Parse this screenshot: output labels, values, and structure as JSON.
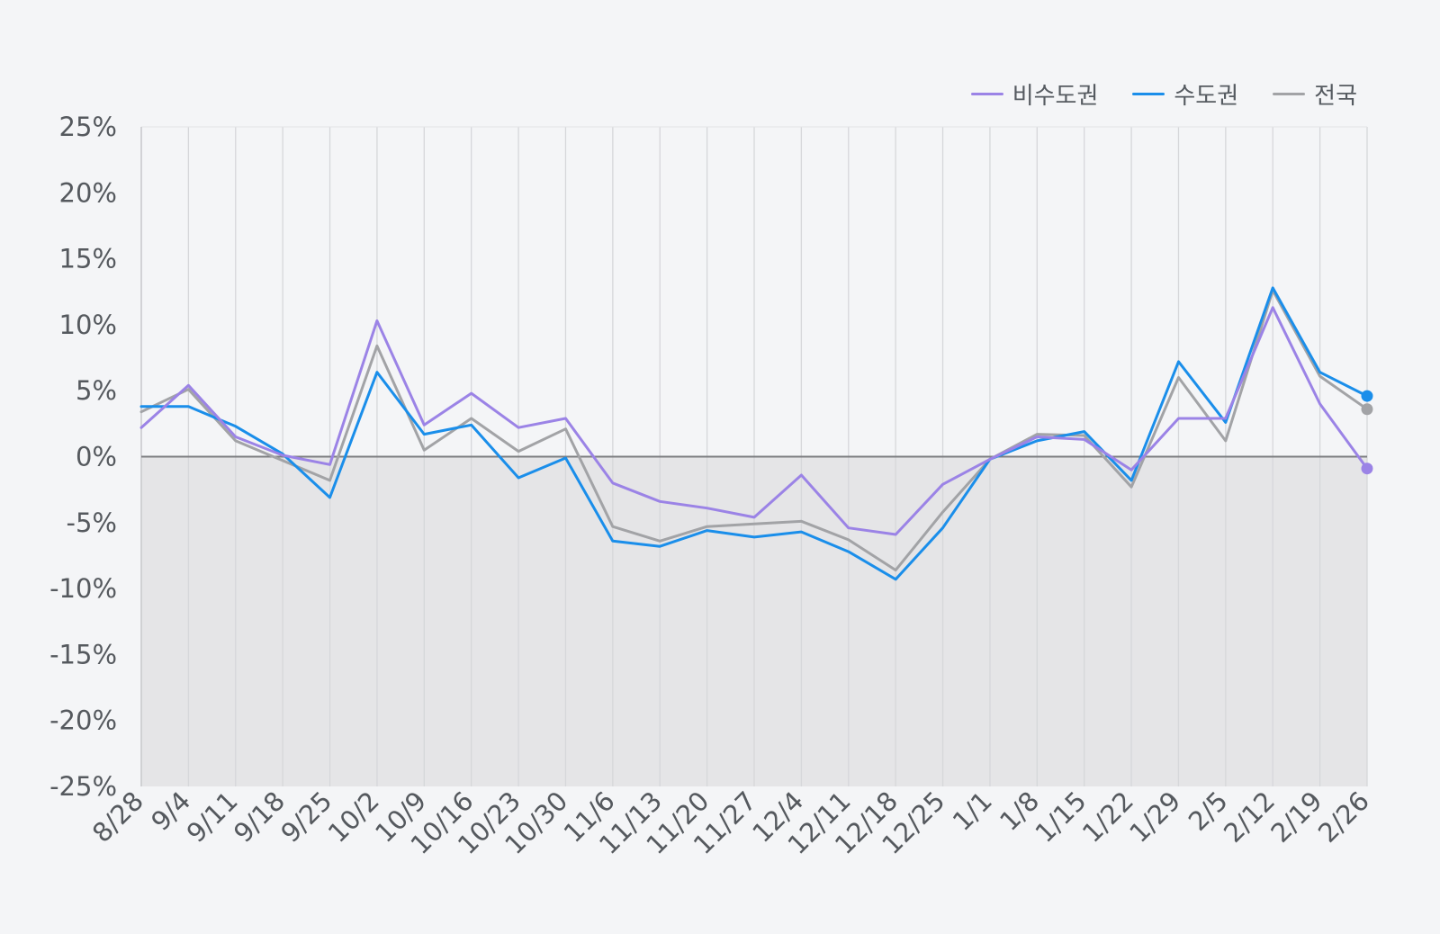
{
  "chart_data": {
    "type": "line",
    "title": "",
    "xlabel": "",
    "ylabel": "",
    "categories": [
      "8/28",
      "9/4",
      "9/11",
      "9/18",
      "9/25",
      "10/2",
      "10/9",
      "10/16",
      "10/23",
      "10/30",
      "11/6",
      "11/13",
      "11/20",
      "11/27",
      "12/4",
      "12/11",
      "12/18",
      "12/25",
      "1/1",
      "1/8",
      "1/15",
      "1/22",
      "1/29",
      "2/5",
      "2/12",
      "2/19",
      "2/26"
    ],
    "ylim": [
      -25,
      25
    ],
    "yticks": [
      25,
      20,
      15,
      10,
      5,
      0,
      -5,
      -10,
      -15,
      -20,
      -25
    ],
    "ytick_labels": [
      "25%",
      "20%",
      "15%",
      "10%",
      "5%",
      "0%",
      "-5%",
      "-10%",
      "-15%",
      "-20%",
      "-25%"
    ],
    "grid": true,
    "legend": "top-right",
    "series": [
      {
        "name": "비수도권",
        "color": "#9b83e6",
        "values": [
          2.2,
          5.4,
          1.5,
          0.1,
          -0.6,
          10.3,
          2.4,
          4.8,
          2.2,
          2.9,
          -2.0,
          -3.4,
          -3.9,
          -4.6,
          -1.4,
          -5.4,
          -5.9,
          -2.1,
          -0.2,
          1.5,
          1.3,
          -1.0,
          2.9,
          2.9,
          11.3,
          4.0,
          -0.9
        ]
      },
      {
        "name": "수도권",
        "color": "#1a8eea",
        "values": [
          3.8,
          3.8,
          2.3,
          0.2,
          -3.1,
          6.4,
          1.7,
          2.4,
          -1.6,
          -0.1,
          -6.4,
          -6.8,
          -5.6,
          -6.1,
          -5.7,
          -7.2,
          -9.3,
          -5.4,
          -0.2,
          1.2,
          1.9,
          -1.8,
          7.2,
          2.6,
          12.8,
          6.4,
          4.6
        ]
      },
      {
        "name": "전국",
        "color": "#a2a3a6",
        "values": [
          3.4,
          5.1,
          1.2,
          -0.3,
          -1.8,
          8.4,
          0.5,
          2.9,
          0.4,
          2.1,
          -5.3,
          -6.4,
          -5.3,
          -5.1,
          -4.9,
          -6.3,
          -8.6,
          -4.2,
          -0.2,
          1.7,
          1.6,
          -2.3,
          6.0,
          1.2,
          12.6,
          6.1,
          3.6
        ]
      }
    ]
  }
}
